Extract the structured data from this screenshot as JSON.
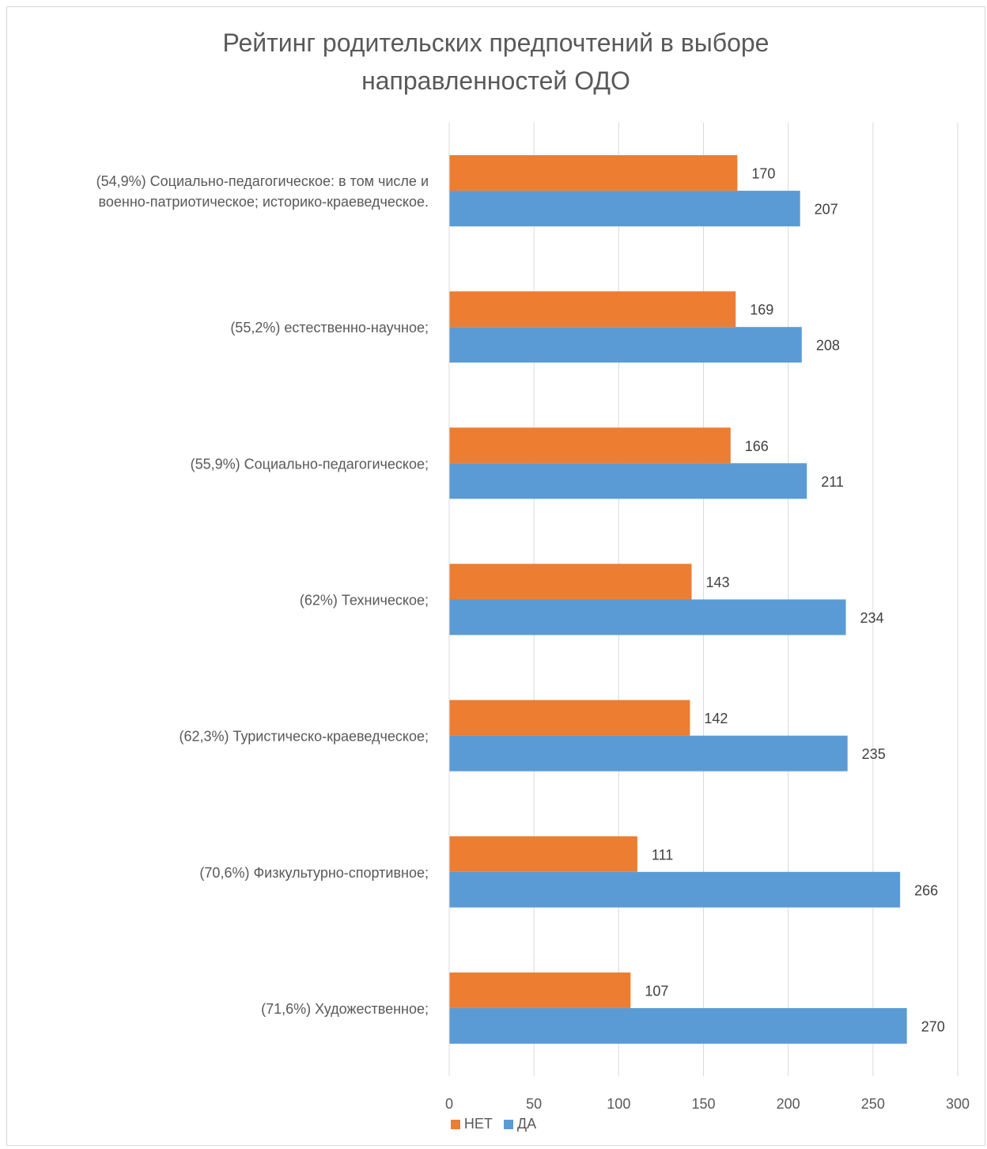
{
  "chart_data": {
    "type": "bar",
    "orientation": "horizontal",
    "title": [
      "Рейтинг родительских предпочтений в выборе",
      "направленностей ОДО"
    ],
    "categories": [
      [
        "(54,9%) Социально-педагогическое: в том числе и",
        "военно-патриотическое; историко-краеведческое."
      ],
      [
        "(55,2%) естественно-научное;"
      ],
      [
        "(55,9%) Социально-педагогическое;"
      ],
      [
        "(62%) Техническое;"
      ],
      [
        "(62,3%) Туристическо-краеведческое;"
      ],
      [
        "(70,6%) Физкультурно-спортивное;"
      ],
      [
        "(71,6%) Художественное;"
      ]
    ],
    "series": [
      {
        "name": "НЕТ",
        "color": "#ED7D31",
        "values": [
          170,
          169,
          166,
          143,
          142,
          111,
          107
        ]
      },
      {
        "name": "ДА",
        "color": "#5B9BD5",
        "values": [
          207,
          208,
          211,
          234,
          235,
          266,
          270
        ]
      }
    ],
    "xlim": [
      0,
      300
    ],
    "xticks": [
      0,
      50,
      100,
      150,
      200,
      250,
      300
    ],
    "grid": "vertical",
    "legend": "bottom",
    "data_labels": true
  }
}
